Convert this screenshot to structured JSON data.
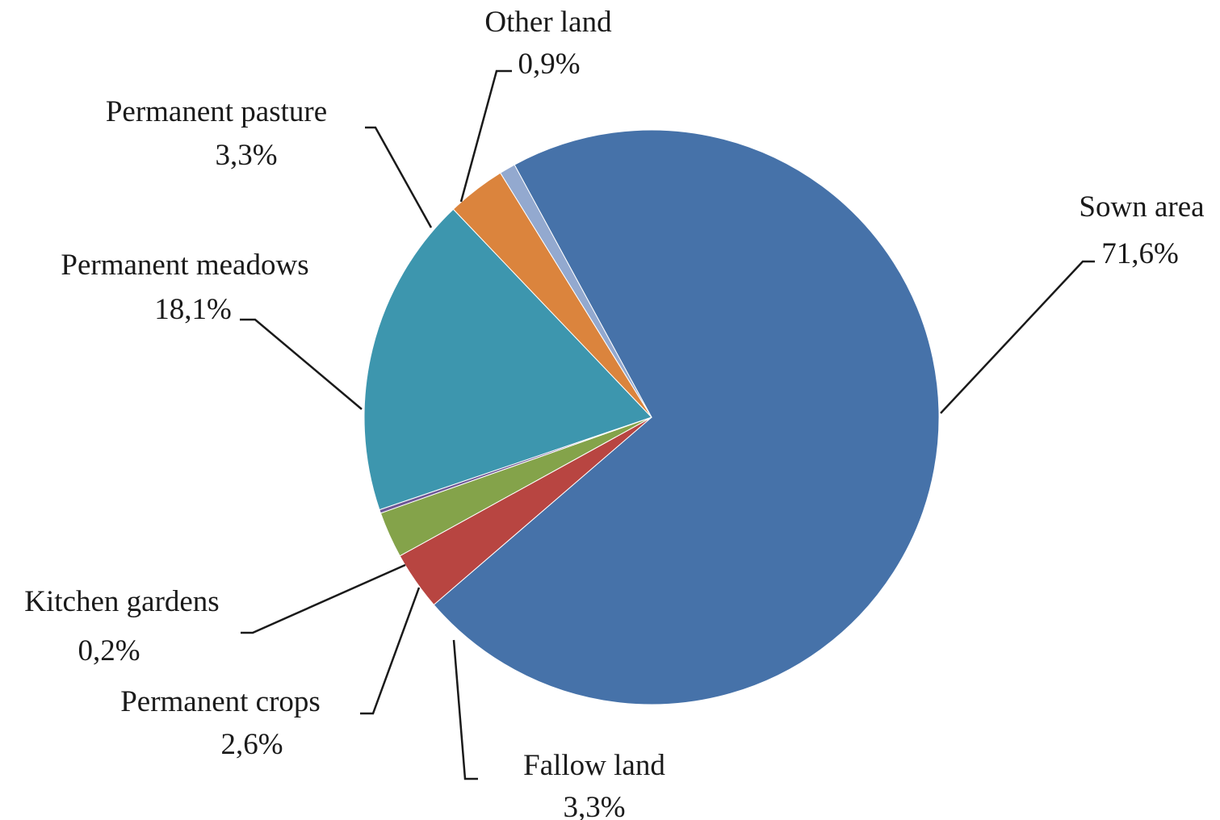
{
  "chart_data": {
    "type": "pie",
    "title": "",
    "slices": [
      {
        "name": "Sown area",
        "value": 71.6,
        "value_label": "71,6%",
        "color": "#4672A9"
      },
      {
        "name": "Fallow land",
        "value": 3.3,
        "value_label": "3,3%",
        "color": "#B84541"
      },
      {
        "name": "Permanent crops",
        "value": 2.6,
        "value_label": "2,6%",
        "color": "#84A34A"
      },
      {
        "name": "Kitchen gardens",
        "value": 0.2,
        "value_label": "0,2%",
        "color": "#6E5796"
      },
      {
        "name": "Permanent meadows",
        "value": 18.1,
        "value_label": "18,1%",
        "color": "#3D96AE"
      },
      {
        "name": "Permanent pasture",
        "value": 3.3,
        "value_label": "3,3%",
        "color": "#DB843D"
      },
      {
        "name": "Other land",
        "value": 0.9,
        "value_label": "0,9%",
        "color": "#93A9CF"
      }
    ],
    "legend": "none",
    "start_direction": "clockwise from upper-left"
  }
}
